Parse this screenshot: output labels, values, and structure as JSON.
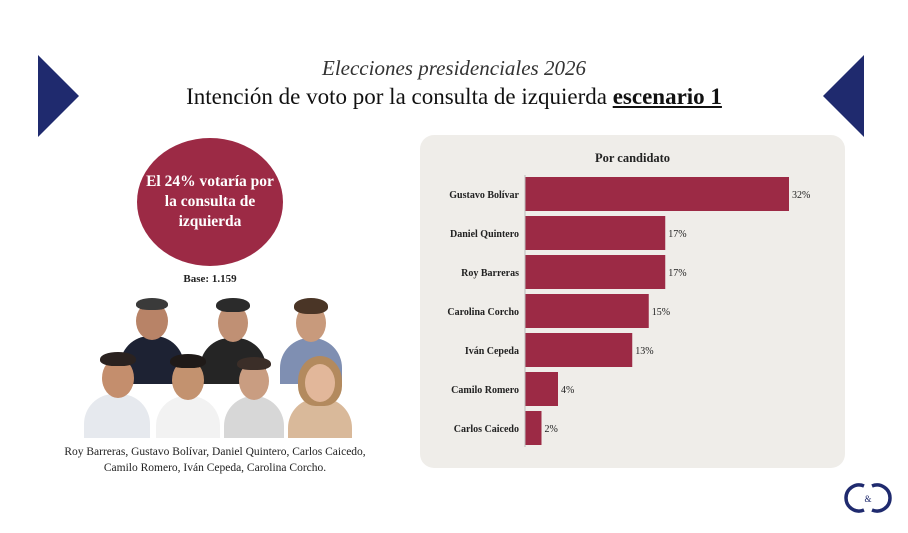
{
  "header": {
    "subtitle": "Elecciones presidenciales 2026",
    "title_main": "Intención de voto por la consulta de izquierda",
    "title_emphasis": "escenario 1"
  },
  "highlight": {
    "circle_text": "El 24% votaría por la consulta de izquierda",
    "base": "Base: 1.159"
  },
  "candidates_caption": "Roy Barreras, Gustavo Bolívar, Daniel Quintero, Carlos Caicedo, Camilo Romero, Iván Cepeda, Carolina Corcho.",
  "colors": {
    "bar": "#9c2a45",
    "accent": "#1f2a6e",
    "panel": "#efede9"
  },
  "chart_data": {
    "type": "bar",
    "orientation": "horizontal",
    "title": "Por candidato",
    "categories": [
      "Gustavo Bolívar",
      "Daniel Quintero",
      "Roy Barreras",
      "Carolina Corcho",
      "Iván Cepeda",
      "Camilo Romero",
      "Carlos Caicedo"
    ],
    "values": [
      32,
      17,
      17,
      15,
      13,
      4,
      2
    ],
    "labels": [
      "32%",
      "17%",
      "17%",
      "15%",
      "13%",
      "4%",
      "2%"
    ],
    "xlim": [
      0,
      32
    ],
    "grid": false,
    "legend": "none"
  },
  "logo": {
    "icon": "c-and-c-logo-icon",
    "ampersand": "&"
  }
}
